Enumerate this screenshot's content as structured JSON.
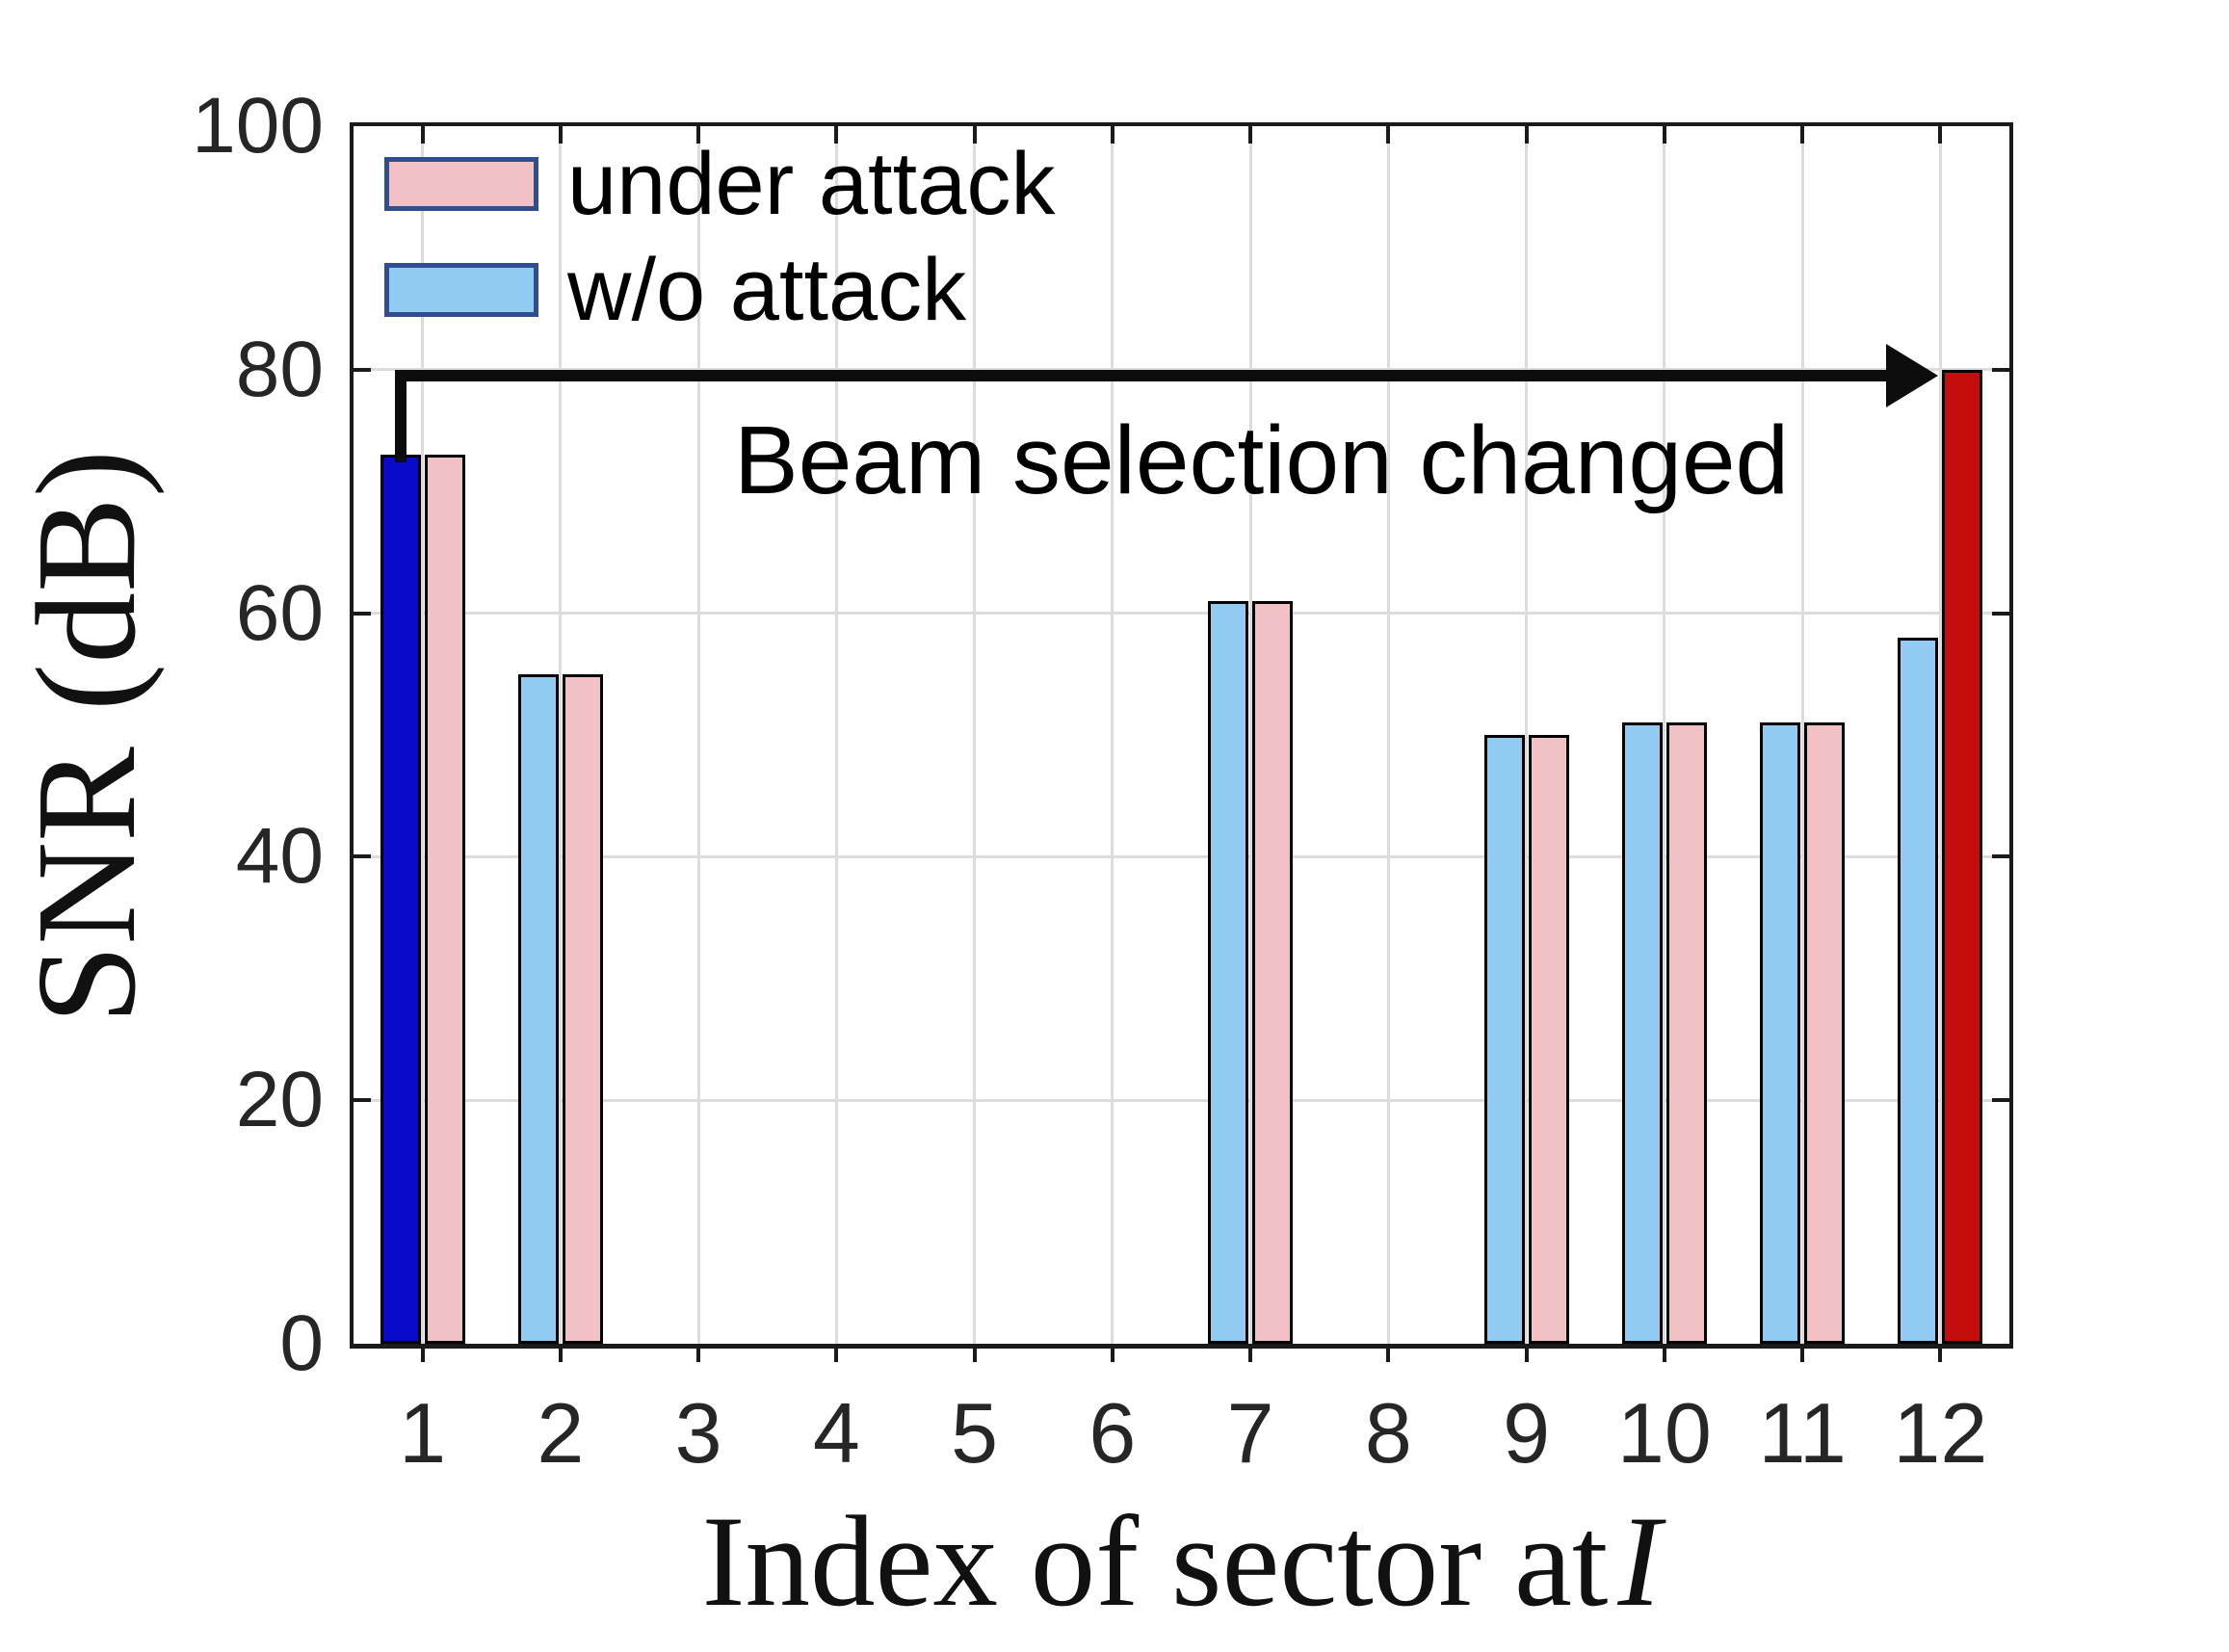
{
  "figure": {
    "background": "#ffffff"
  },
  "chart_data": {
    "type": "bar",
    "title": "",
    "xlabel": "Index of sector at I",
    "xlabel_prefix": "Index of sector at",
    "xlabel_variable": "I",
    "ylabel": "SNR (dB)",
    "categories": [
      "1",
      "2",
      "3",
      "4",
      "5",
      "6",
      "7",
      "8",
      "9",
      "10",
      "11",
      "12"
    ],
    "ylim": [
      0,
      100
    ],
    "yticks": [
      0,
      20,
      40,
      60,
      80,
      100
    ],
    "grid": true,
    "legend_position": "top-left",
    "bar_edge_color": "#000000",
    "series": [
      {
        "name": "w/o attack",
        "pair_side": "left",
        "fill": "#92cbf2",
        "values": [
          73,
          55,
          null,
          null,
          null,
          null,
          61,
          null,
          50,
          51,
          51,
          58
        ],
        "highlight": {
          "category": "1",
          "index": 0,
          "fill": "#0a0acc"
        }
      },
      {
        "name": "under attack",
        "pair_side": "right",
        "fill": "#f2c1c6",
        "values": [
          73,
          55,
          null,
          null,
          null,
          null,
          61,
          null,
          50,
          51,
          51,
          80
        ],
        "highlight": {
          "category": "12",
          "index": 11,
          "fill": "#c60d0e"
        }
      }
    ],
    "annotation": {
      "text": "Beam selection changed",
      "arrow_y_value": 80,
      "arrow_from_category": "1",
      "arrow_to_category": "12"
    }
  },
  "legend": {
    "swatch_border": "#2f4d8f",
    "items": [
      {
        "label": "under attack",
        "fill": "#f2c1c6"
      },
      {
        "label": "w/o attack",
        "fill": "#92cbf2"
      }
    ]
  },
  "style": {
    "axis_color": "#1a1a1a",
    "grid_color": "#dcdcdc",
    "tick_label_color": "#262626",
    "annotation_color": "#000000"
  }
}
